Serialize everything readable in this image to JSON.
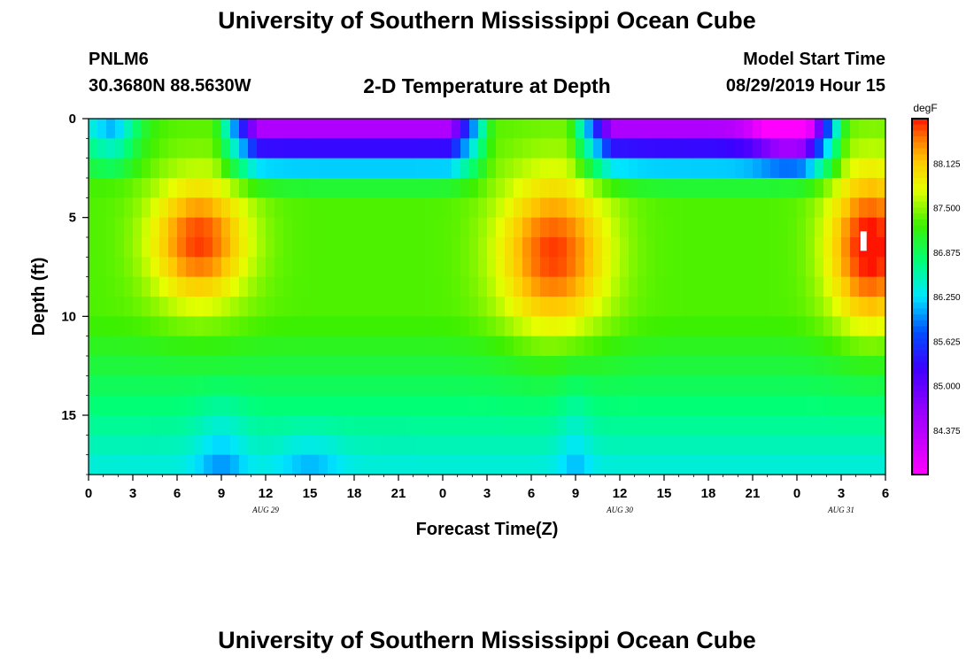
{
  "header": {
    "title": "University of Southern Mississippi Ocean Cube",
    "station": "PNLM6",
    "coordinates": "30.3680N 88.5630W",
    "subtitle": "2-D Temperature at Depth",
    "model_start_label": "Model Start Time",
    "model_start_value": "08/29/2019 Hour 15"
  },
  "footer": {
    "title": "University of Southern Mississippi Ocean Cube"
  },
  "chart_data": {
    "type": "heatmap",
    "title": "2-D Temperature at Depth",
    "xlabel": "Forecast Time(Z)",
    "ylabel": "Depth (ft)",
    "x_range_hours": [
      0,
      54
    ],
    "x_ticks": [
      {
        "h": 0,
        "label": "0"
      },
      {
        "h": 3,
        "label": "3"
      },
      {
        "h": 6,
        "label": "6"
      },
      {
        "h": 9,
        "label": "9"
      },
      {
        "h": 12,
        "label": "12"
      },
      {
        "h": 15,
        "label": "15"
      },
      {
        "h": 18,
        "label": "18"
      },
      {
        "h": 21,
        "label": "21"
      },
      {
        "h": 24,
        "label": "0"
      },
      {
        "h": 27,
        "label": "3"
      },
      {
        "h": 30,
        "label": "6"
      },
      {
        "h": 33,
        "label": "9"
      },
      {
        "h": 36,
        "label": "12"
      },
      {
        "h": 39,
        "label": "15"
      },
      {
        "h": 42,
        "label": "18"
      },
      {
        "h": 45,
        "label": "21"
      },
      {
        "h": 48,
        "label": "0"
      },
      {
        "h": 51,
        "label": "3"
      },
      {
        "h": 54,
        "label": "6"
      }
    ],
    "date_labels": [
      {
        "h": 12,
        "label": "AUG 29"
      },
      {
        "h": 36,
        "label": "AUG 30"
      },
      {
        "h": 51,
        "label": "AUG 31"
      }
    ],
    "y_range_ft": [
      0,
      18
    ],
    "y_ticks": [
      {
        "v": 0,
        "label": "0"
      },
      {
        "v": 5,
        "label": "5"
      },
      {
        "v": 10,
        "label": "10"
      },
      {
        "v": 15,
        "label": "15"
      }
    ],
    "colorbar": {
      "unit": "degF",
      "min": 83.75,
      "max": 88.75,
      "labels": [
        "88.125",
        "87.500",
        "86.875",
        "86.250",
        "85.625",
        "85.000",
        "84.375"
      ],
      "label_values": [
        88.125,
        87.5,
        86.875,
        86.25,
        85.625,
        85.0,
        84.375
      ]
    },
    "depth_profile_ft": [
      0.5,
      1.5,
      2.5,
      3.5,
      4.5,
      5.5,
      6.5,
      7.5,
      8.5,
      9.5,
      10.5,
      11.5,
      12.5,
      13.5,
      14.5,
      15.5,
      16.5,
      17.5
    ],
    "warm_core_hours": [
      7.5,
      31.5,
      53
    ],
    "surface_cool_hours": [
      [
        10,
        26
      ],
      [
        34,
        50
      ]
    ],
    "approx_values": {
      "surface_min": 84.0,
      "warm_core_max": 88.6,
      "mid_depth": 87.3,
      "bottom": 86.9
    }
  }
}
